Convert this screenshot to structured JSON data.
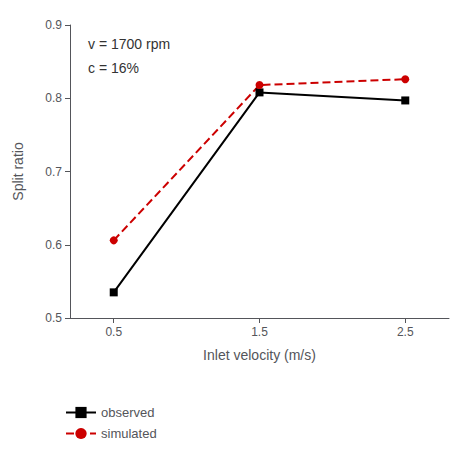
{
  "chart_data": {
    "type": "line",
    "x": [
      0.5,
      1.5,
      2.5
    ],
    "series": [
      {
        "name": "observed",
        "color": "#000000",
        "values": [
          0.535,
          0.808,
          0.797
        ],
        "marker": "square",
        "line_style": "solid"
      },
      {
        "name": "simulated",
        "color": "#cc0000",
        "values": [
          0.606,
          0.818,
          0.826
        ],
        "marker": "circle",
        "line_style": "dashed"
      }
    ],
    "xlabel": "Inlet velocity (m/s)",
    "ylabel": "Split ratio",
    "xlim": [
      0.2,
      2.8
    ],
    "ylim": [
      0.5,
      0.9
    ],
    "xticks": [
      0.5,
      1.5,
      2.5
    ],
    "yticks": [
      0.5,
      0.6,
      0.7,
      0.8,
      0.9
    ],
    "annotations": [
      "v = 1700 rpm",
      "c = 16%"
    ],
    "legend": "lower left",
    "grid": false
  }
}
